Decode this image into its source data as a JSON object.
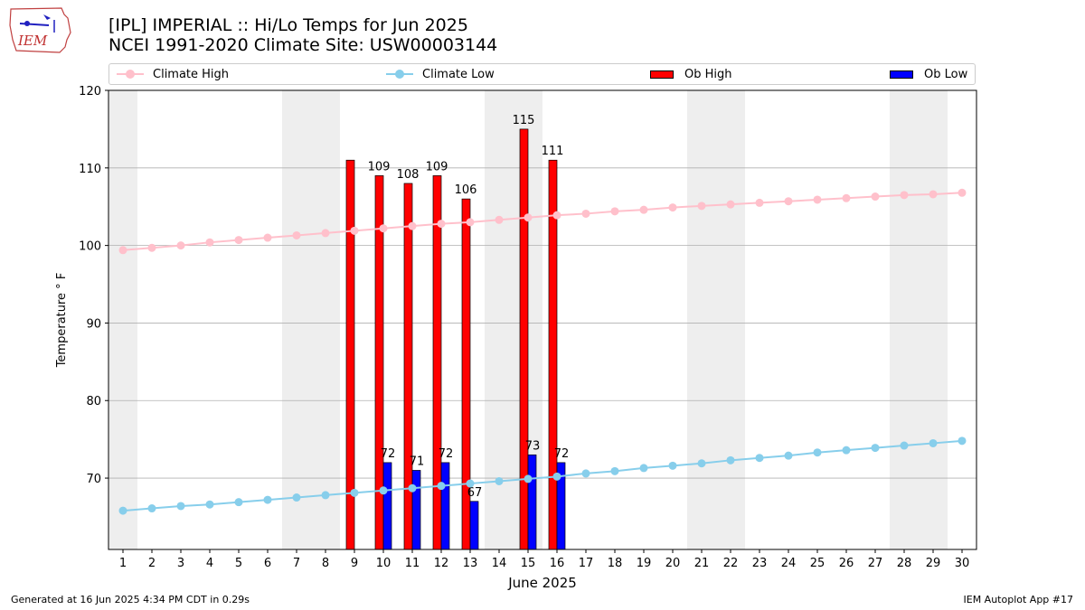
{
  "header": {
    "logo_text": "IEM",
    "title_line1": "[IPL] IMPERIAL :: Hi/Lo Temps for Jun 2025",
    "title_line2": "NCEI 1991-2020 Climate Site: USW00003144"
  },
  "legend": {
    "climate_high": "Climate High",
    "climate_low": "Climate Low",
    "ob_high": "Ob High",
    "ob_low": "Ob Low"
  },
  "colors": {
    "climate_high": "#ffc0cb",
    "climate_low": "#87ceeb",
    "ob_high": "#ff0000",
    "ob_low": "#0000ff",
    "weekend_shade": "#eeeeee",
    "grid": "#b0b0b0"
  },
  "footer": {
    "left": "Generated at 16 Jun 2025 4:34 PM CDT in 0.29s",
    "right": "IEM Autoplot App #17"
  },
  "chart_data": {
    "type": "bar",
    "xlabel": "June 2025",
    "ylabel": "Temperature ° F",
    "xlim": [
      0.5,
      30.5
    ],
    "ylim": [
      60.8,
      120
    ],
    "yticks": [
      70,
      80,
      90,
      100,
      110,
      120
    ],
    "grid": true,
    "legend_position": "top",
    "days": [
      1,
      2,
      3,
      4,
      5,
      6,
      7,
      8,
      9,
      10,
      11,
      12,
      13,
      14,
      15,
      16,
      17,
      18,
      19,
      20,
      21,
      22,
      23,
      24,
      25,
      26,
      27,
      28,
      29,
      30
    ],
    "weekend_shading": [
      [
        0.5,
        1.5
      ],
      [
        6.5,
        8.5
      ],
      [
        13.5,
        15.5
      ],
      [
        20.5,
        22.5
      ],
      [
        27.5,
        29.5
      ]
    ],
    "climate_high": [
      99.4,
      99.7,
      100.0,
      100.4,
      100.7,
      101.0,
      101.3,
      101.6,
      101.9,
      102.2,
      102.5,
      102.8,
      103.0,
      103.3,
      103.6,
      103.9,
      104.1,
      104.4,
      104.6,
      104.9,
      105.1,
      105.3,
      105.5,
      105.7,
      105.9,
      106.1,
      106.3,
      106.5,
      106.6,
      106.8
    ],
    "climate_low": [
      65.8,
      66.1,
      66.4,
      66.6,
      66.9,
      67.2,
      67.5,
      67.8,
      68.1,
      68.4,
      68.7,
      69.0,
      69.3,
      69.6,
      69.9,
      70.2,
      70.6,
      70.9,
      71.3,
      71.6,
      71.9,
      72.3,
      72.6,
      72.9,
      73.3,
      73.6,
      73.9,
      74.2,
      74.5,
      74.8
    ],
    "ob_high": [
      {
        "day": 9,
        "value": 111,
        "label": ""
      },
      {
        "day": 10,
        "value": 109,
        "label": "109"
      },
      {
        "day": 11,
        "value": 108,
        "label": "108"
      },
      {
        "day": 12,
        "value": 109,
        "label": "109"
      },
      {
        "day": 13,
        "value": 106,
        "label": "106"
      },
      {
        "day": 15,
        "value": 115,
        "label": "115"
      },
      {
        "day": 16,
        "value": 111,
        "label": "111"
      }
    ],
    "ob_low": [
      {
        "day": 10,
        "value": 72,
        "label": "72"
      },
      {
        "day": 11,
        "value": 71,
        "label": "71"
      },
      {
        "day": 12,
        "value": 72,
        "label": "72"
      },
      {
        "day": 13,
        "value": 67,
        "label": "67"
      },
      {
        "day": 15,
        "value": 73,
        "label": "73"
      },
      {
        "day": 16,
        "value": 72,
        "label": "72"
      }
    ]
  }
}
